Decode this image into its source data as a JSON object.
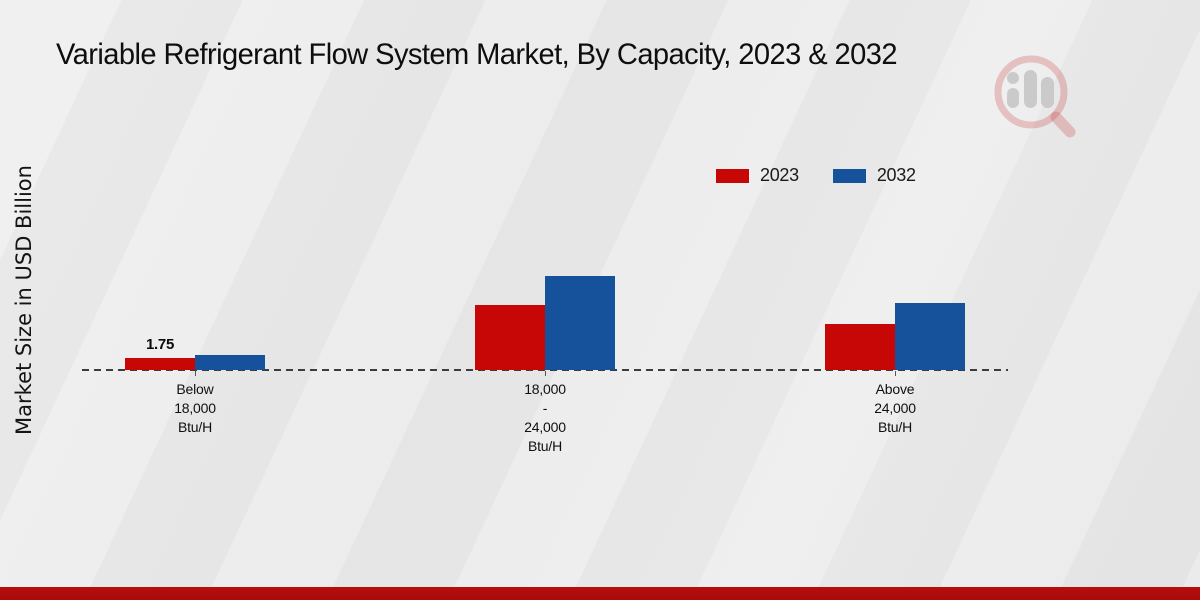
{
  "chart": {
    "title": "Variable Refrigerant Flow System Market, By Capacity, 2023 & 2032",
    "ylabel": "Market Size in USD Billion"
  },
  "chart_data": {
    "type": "bar",
    "title": "Variable Refrigerant Flow System Market, By Capacity, 2023 & 2032",
    "xlabel": "",
    "ylabel": "Market Size in USD Billion",
    "ylim": [
      0,
      14
    ],
    "grid": false,
    "legend_position": "top-right-inside",
    "categories": [
      [
        "Below",
        "18,000",
        "Btu/H"
      ],
      [
        "18,000",
        "-",
        "24,000",
        "Btu/H"
      ],
      [
        "Above",
        "24,000",
        "Btu/H"
      ]
    ],
    "series": [
      {
        "name": "2023",
        "color": "#c70606",
        "values": [
          1.75,
          9.5,
          6.7
        ]
      },
      {
        "name": "2032",
        "color": "#15529b",
        "values": [
          2.2,
          13.7,
          9.8
        ]
      }
    ],
    "value_labels": [
      {
        "series_index": 0,
        "category_index": 0,
        "text": "1.75"
      }
    ]
  },
  "branding": {
    "footer_band_color": "#b80d0d",
    "watermark_icon": "magnifier-bar-chart-logo"
  }
}
